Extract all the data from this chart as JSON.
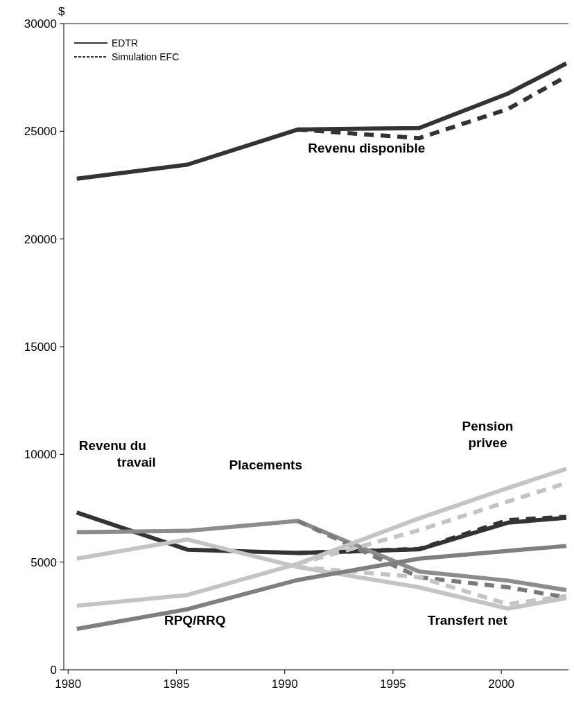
{
  "chart_data": {
    "type": "line",
    "ylabel": "$",
    "x": [
      1980.4,
      1985.5,
      1990.6,
      1996.2,
      2000.3,
      2003
    ],
    "xlim": [
      1979.8,
      2003.1
    ],
    "xticks": [
      1980,
      1985,
      1990,
      1995,
      2000
    ],
    "ylim": [
      0,
      30000
    ],
    "yticks": [
      0,
      5000,
      10000,
      15000,
      20000,
      25000,
      30000
    ],
    "grid": false,
    "legend": "top left",
    "marker": "none",
    "series": [
      {
        "name": "EDTR",
        "color": "#333333",
        "values": [
          22800,
          23450,
          25080,
          25150,
          26750,
          28150
        ],
        "line_style": "solid"
      },
      {
        "name": "Simulation EFC",
        "color": "#333333",
        "values": [
          null,
          null,
          25080,
          24680,
          26030,
          27540
        ],
        "line_style": "dashed"
      },
      {
        "color": "#333333",
        "values": [
          7300,
          5580,
          5420,
          5590,
          6830,
          7060
        ],
        "line_style": "solid"
      },
      {
        "color": "#333333",
        "values": [
          null,
          null,
          5420,
          5610,
          6950,
          7100
        ],
        "line_style": "dashed"
      },
      {
        "color": "#8c8c8c",
        "values": [
          6390,
          6450,
          6910,
          4560,
          4140,
          3700
        ],
        "line_style": "solid"
      },
      {
        "color": "#7a7a7a",
        "values": [
          null,
          null,
          6910,
          4300,
          3830,
          3360
        ],
        "line_style": "dashed"
      },
      {
        "color": "#c4c4c4",
        "values": [
          5160,
          6050,
          4770,
          3830,
          2840,
          3330
        ],
        "line_style": "solid"
      },
      {
        "color": "#c4c4c4",
        "values": [
          null,
          null,
          4770,
          4300,
          3050,
          3420
        ],
        "line_style": "dashed"
      },
      {
        "color": "#c4c4c4",
        "values": [
          2970,
          3470,
          4920,
          7030,
          8440,
          9330
        ],
        "line_style": "solid"
      },
      {
        "color": "#c4c4c4",
        "values": [
          null,
          null,
          4920,
          6480,
          7810,
          8670
        ],
        "line_style": "dashed"
      },
      {
        "color": "#7f7f7f",
        "values": [
          1900,
          2810,
          4170,
          5160,
          5520,
          5750
        ],
        "line_style": "solid"
      }
    ],
    "annotations": [
      "Revenu disponible",
      "Revenu du\ntravail",
      "Placements",
      "Pension\nprivee",
      "RPQ/RRQ",
      "Transfert net"
    ]
  }
}
